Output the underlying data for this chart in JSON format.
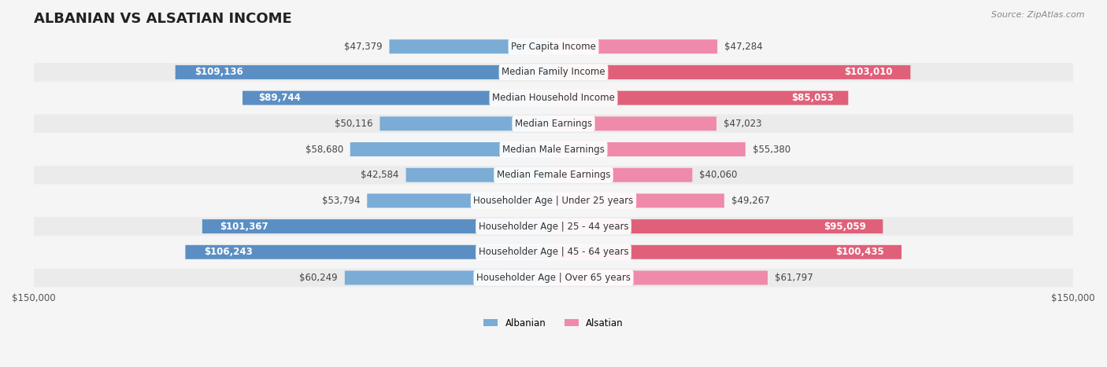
{
  "title": "ALBANIAN VS ALSATIAN INCOME",
  "source": "Source: ZipAtlas.com",
  "categories": [
    "Per Capita Income",
    "Median Family Income",
    "Median Household Income",
    "Median Earnings",
    "Median Male Earnings",
    "Median Female Earnings",
    "Householder Age | Under 25 years",
    "Householder Age | 25 - 44 years",
    "Householder Age | 45 - 64 years",
    "Householder Age | Over 65 years"
  ],
  "albanian_values": [
    47379,
    109136,
    89744,
    50116,
    58680,
    42584,
    53794,
    101367,
    106243,
    60249
  ],
  "alsatian_values": [
    47284,
    103010,
    85053,
    47023,
    55380,
    40060,
    49267,
    95059,
    100435,
    61797
  ],
  "albanian_labels": [
    "$47,379",
    "$109,136",
    "$89,744",
    "$50,116",
    "$58,680",
    "$42,584",
    "$53,794",
    "$101,367",
    "$106,243",
    "$60,249"
  ],
  "alsatian_labels": [
    "$47,284",
    "$103,010",
    "$85,053",
    "$47,023",
    "$55,380",
    "$40,060",
    "$49,267",
    "$95,059",
    "$100,435",
    "$61,797"
  ],
  "albanian_color": "#7aacd6",
  "albanian_color_dark": "#5b8fc4",
  "alsatian_color": "#f08aaa",
  "alsatian_color_dark": "#e0607a",
  "max_value": 150000,
  "bg_color": "#f5f5f5",
  "row_bg": "#ebebeb",
  "row_bg_alt": "#f5f5f5",
  "title_fontsize": 13,
  "label_fontsize": 8.5,
  "axis_fontsize": 8.5,
  "source_fontsize": 8
}
